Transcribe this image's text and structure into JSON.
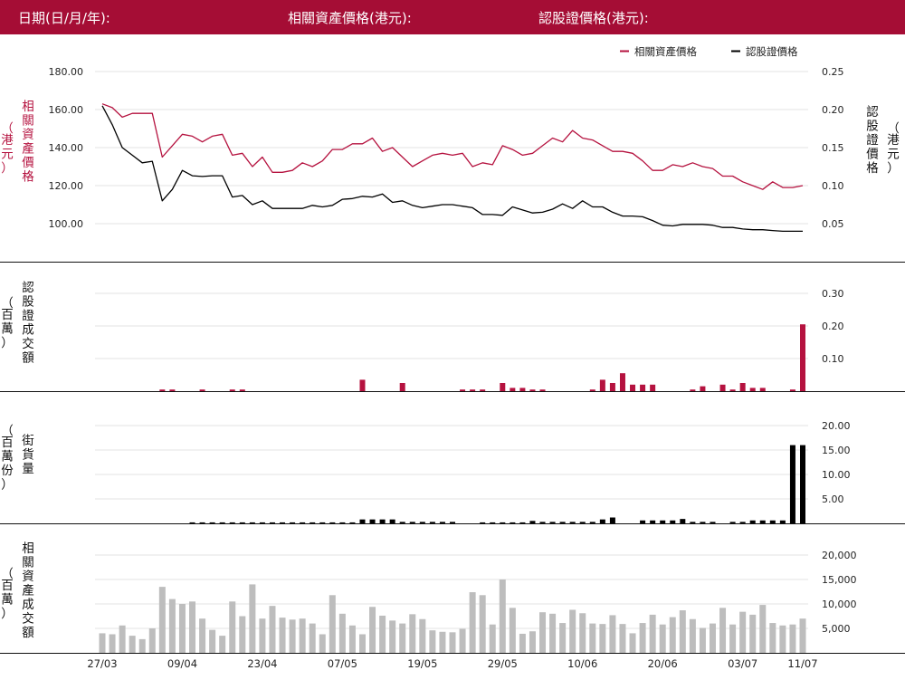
{
  "header": {
    "date_label": "日期(日/月/年):",
    "underlying_label": "相關資產價格(港元):",
    "warrant_label": "認股證價格(港元):"
  },
  "colors": {
    "brand": "#a50d35",
    "underlying": "#b5123f",
    "warrant": "#000000",
    "turnover_grey": "#bdbdbd"
  },
  "chart_data": [
    {
      "type": "line",
      "legend": [
        "相關資產價格",
        "認股證價格"
      ],
      "ylabel_left": "相關資產價格（港元）",
      "ylabel_right": "認股證價格（港元）",
      "yticks_left": [
        "180.00",
        "160.00",
        "140.00",
        "120.00",
        "100.00"
      ],
      "yticks_right": [
        "0.25",
        "0.20",
        "0.15",
        "0.10",
        "0.05"
      ],
      "ylim_left": [
        80,
        180
      ],
      "ylim_right": [
        0.0,
        0.25
      ],
      "grid": true,
      "series": [
        {
          "name": "相關資產價格",
          "values": [
            163,
            161,
            156,
            158,
            158,
            158,
            135,
            141,
            147,
            146,
            143,
            146,
            147,
            136,
            137,
            130,
            135,
            127,
            127,
            128,
            132,
            130,
            133,
            139,
            139,
            142,
            142,
            145,
            138,
            140,
            135,
            130,
            133,
            136,
            137,
            136,
            137,
            130,
            132,
            131,
            141,
            139,
            136,
            137,
            141,
            145,
            143,
            149,
            145,
            144,
            141,
            138,
            138,
            137,
            133,
            128,
            128,
            131,
            130,
            132,
            130,
            129,
            125,
            125,
            122,
            120,
            118,
            122,
            119,
            119,
            120
          ]
        },
        {
          "name": "認股證價格",
          "values": [
            0.205,
            0.18,
            0.15,
            0.14,
            0.13,
            0.132,
            0.08,
            0.095,
            0.12,
            0.113,
            0.112,
            0.113,
            0.113,
            0.085,
            0.087,
            0.075,
            0.08,
            0.07,
            0.07,
            0.07,
            0.07,
            0.074,
            0.072,
            0.074,
            0.082,
            0.083,
            0.086,
            0.085,
            0.089,
            0.078,
            0.08,
            0.074,
            0.071,
            0.073,
            0.075,
            0.075,
            0.073,
            0.071,
            0.062,
            0.062,
            0.061,
            0.072,
            0.068,
            0.064,
            0.065,
            0.069,
            0.076,
            0.07,
            0.08,
            0.072,
            0.072,
            0.065,
            0.06,
            0.06,
            0.059,
            0.054,
            0.048,
            0.047,
            0.049,
            0.049,
            0.049,
            0.048,
            0.045,
            0.045,
            0.043,
            0.042,
            0.042,
            0.041,
            0.04,
            0.04,
            0.04
          ]
        }
      ]
    },
    {
      "type": "bar",
      "ylabel": "認股證成交額（百萬）",
      "yticks": [
        "0.30",
        "0.20",
        "0.10"
      ],
      "ylim": [
        0,
        0.3
      ],
      "grid": true,
      "values": [
        0,
        0,
        0,
        0,
        0,
        0,
        0.005,
        0.005,
        0,
        0,
        0.005,
        0,
        0,
        0.005,
        0.005,
        0,
        0,
        0,
        0,
        0,
        0,
        0,
        0,
        0,
        0,
        0,
        0.035,
        0,
        0,
        0,
        0.025,
        0,
        0,
        0,
        0,
        0,
        0.005,
        0.005,
        0.005,
        0,
        0.025,
        0.01,
        0.01,
        0.005,
        0.005,
        0,
        0,
        0,
        0,
        0.005,
        0.035,
        0.025,
        0.055,
        0.02,
        0.02,
        0.02,
        0,
        0,
        0,
        0.005,
        0.015,
        0,
        0.02,
        0.005,
        0.025,
        0.01,
        0.01,
        0,
        0,
        0.005,
        0.205
      ]
    },
    {
      "type": "bar",
      "ylabel": "街貨量（百萬份）",
      "yticks": [
        "20.00",
        "15.00",
        "10.00",
        "5.00"
      ],
      "ylim": [
        0,
        20
      ],
      "grid": true,
      "values": [
        0,
        0,
        0,
        0,
        0,
        0,
        0,
        0,
        0,
        0.2,
        0.2,
        0.2,
        0.2,
        0.2,
        0.2,
        0.2,
        0.2,
        0.2,
        0.2,
        0.2,
        0.2,
        0.2,
        0.2,
        0.2,
        0.2,
        0.2,
        0.8,
        0.8,
        0.8,
        0.8,
        0.3,
        0.3,
        0.3,
        0.3,
        0.3,
        0.3,
        0,
        0,
        0.2,
        0.2,
        0.2,
        0.2,
        0.2,
        0.5,
        0.3,
        0.3,
        0.3,
        0.3,
        0.3,
        0.3,
        0.8,
        1.2,
        0,
        0,
        0.6,
        0.6,
        0.6,
        0.6,
        0.9,
        0.3,
        0.3,
        0.3,
        0,
        0.3,
        0.3,
        0.6,
        0.6,
        0.6,
        0.6,
        16,
        16
      ]
    },
    {
      "type": "bar",
      "ylabel": "相關資產成交額（百萬）",
      "yticks": [
        "20,000",
        "15,000",
        "10,000",
        "5,000"
      ],
      "ylim": [
        0,
        20000
      ],
      "grid": true,
      "categories_shown": [
        "27/03",
        "09/04",
        "23/04",
        "07/05",
        "19/05",
        "29/05",
        "10/06",
        "20/06",
        "03/07",
        "11/07"
      ],
      "values": [
        4000,
        3800,
        5600,
        3500,
        2800,
        5000,
        13500,
        11000,
        10000,
        10500,
        7000,
        4700,
        3500,
        10500,
        7500,
        14000,
        7000,
        9600,
        7200,
        6800,
        7000,
        6000,
        3800,
        11800,
        8000,
        5600,
        3800,
        9400,
        7600,
        6600,
        6000,
        7900,
        6900,
        4600,
        4300,
        4200,
        4900,
        12400,
        11800,
        5800,
        15000,
        9200,
        3900,
        4400,
        8300,
        8000,
        6100,
        8800,
        8100,
        6000,
        5900,
        7700,
        5900,
        4000,
        6100,
        7800,
        5800,
        7300,
        8700,
        6900,
        5100,
        6000,
        9200,
        5800,
        8400,
        7800,
        9800,
        6100,
        5600,
        5800,
        7000
      ]
    }
  ]
}
